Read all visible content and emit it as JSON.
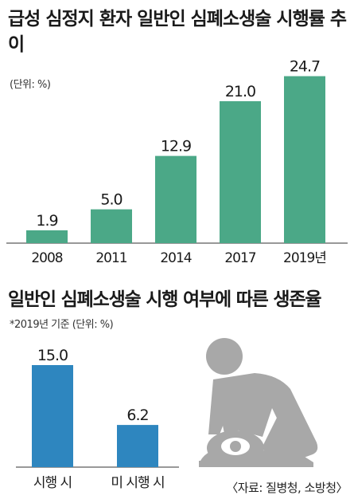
{
  "title": "급성 심정지 환자 일반인 심폐소생술 시행률 추이",
  "unit_note": "(단위: %)",
  "subtitle": "일반인 심폐소생술 시행 여부에 따른 생존율",
  "sub_note": "*2019년 기준 (단위: %)",
  "source": "〈자료: 질병청, 소방청〉",
  "icon": "cpr-pictogram",
  "colors": {
    "chart1": "#4ba887",
    "chart2": "#2e86bf",
    "icon": "#a8a8a8",
    "axis": "#333333"
  },
  "chart_data": [
    {
      "type": "bar",
      "categories": [
        "2008",
        "2011",
        "2014",
        "2017",
        "2019년"
      ],
      "values": [
        1.9,
        5.0,
        12.9,
        21.0,
        24.7
      ],
      "value_labels": [
        "1.9",
        "5.0",
        "12.9",
        "21.0",
        "24.7"
      ],
      "title": "급성 심정지 환자 일반인 심폐소생술 시행률 추이",
      "unit": "%",
      "ylim": [
        0,
        25
      ]
    },
    {
      "type": "bar",
      "categories": [
        "시행 시",
        "미 시행 시"
      ],
      "values": [
        15.0,
        6.2
      ],
      "value_labels": [
        "15.0",
        "6.2"
      ],
      "title": "일반인 심폐소생술 시행 여부에 따른 생존율",
      "unit": "%",
      "ylim": [
        0,
        15
      ]
    }
  ]
}
